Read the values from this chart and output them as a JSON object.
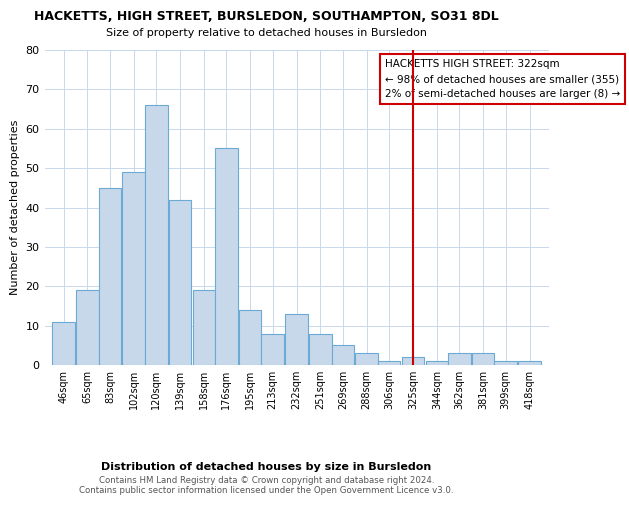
{
  "title": "HACKETTS, HIGH STREET, BURSLEDON, SOUTHAMPTON, SO31 8DL",
  "subtitle": "Size of property relative to detached houses in Bursledon",
  "xlabel": "Distribution of detached houses by size in Bursledon",
  "ylabel": "Number of detached properties",
  "bar_color": "#c8d8eb",
  "bar_edge_color": "#6aaad4",
  "background_color": "#ffffff",
  "grid_color": "#c8d8eb",
  "categories": [
    "46sqm",
    "65sqm",
    "83sqm",
    "102sqm",
    "120sqm",
    "139sqm",
    "158sqm",
    "176sqm",
    "195sqm",
    "213sqm",
    "232sqm",
    "251sqm",
    "269sqm",
    "288sqm",
    "306sqm",
    "325sqm",
    "344sqm",
    "362sqm",
    "381sqm",
    "399sqm",
    "418sqm"
  ],
  "values": [
    11,
    19,
    45,
    49,
    66,
    42,
    19,
    55,
    14,
    8,
    13,
    8,
    5,
    3,
    1,
    2,
    1,
    3,
    3,
    1,
    1
  ],
  "property_line_x": 325,
  "annotation_title": "HACKETTS HIGH STREET: 322sqm",
  "annotation_line1": "← 98% of detached houses are smaller (355)",
  "annotation_line2": "2% of semi-detached houses are larger (8) →",
  "annotation_box_color": "#cc0000",
  "property_line_color": "#cc0000",
  "footer_line1": "Contains HM Land Registry data © Crown copyright and database right 2024.",
  "footer_line2": "Contains public sector information licensed under the Open Government Licence v3.0.",
  "ylim": [
    0,
    80
  ],
  "yticks": [
    0,
    10,
    20,
    30,
    40,
    50,
    60,
    70,
    80
  ]
}
